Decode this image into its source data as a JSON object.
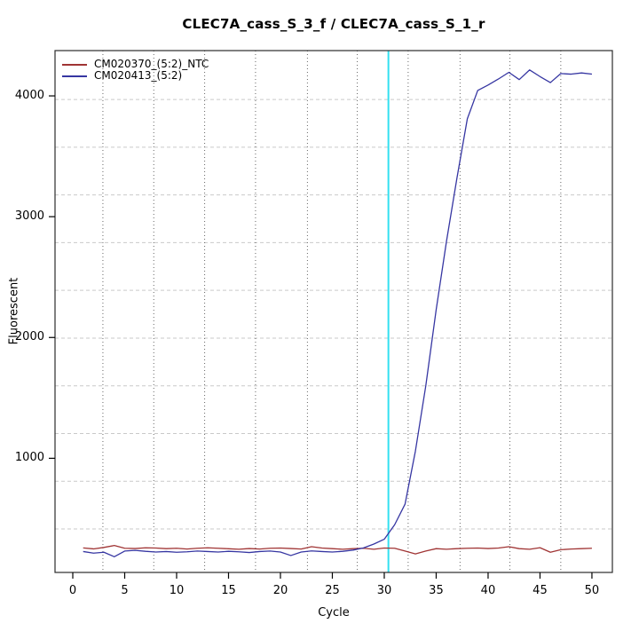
{
  "window": {
    "background": "#ffffff"
  },
  "chart_data": {
    "type": "line",
    "title": "CLEC7A_cass_S_3_f / CLEC7A_cass_S_1_r",
    "xlabel": "Cycle",
    "ylabel": "Fluorescent",
    "x_ticks": [
      0,
      5,
      10,
      15,
      20,
      25,
      30,
      35,
      40,
      45,
      50
    ],
    "y_ticks": [
      1000,
      2000,
      3000,
      4000
    ],
    "xlim": [
      -1.71,
      51.97
    ],
    "ylim": [
      55,
      4375
    ],
    "grid": "on",
    "x_gridlines": [
      2.9,
      7.8,
      12.7,
      17.6,
      22.6,
      27.4,
      32.3,
      37.3,
      42.1,
      47.0
    ],
    "y_gridlines": [
      415,
      810,
      1205,
      1600,
      1995,
      2390,
      2785,
      3180,
      3575,
      3970
    ],
    "threshold_line_cycle": 30.4,
    "legend_position": "top-left",
    "x": [
      1,
      2,
      3,
      4,
      5,
      6,
      7,
      8,
      9,
      10,
      11,
      12,
      13,
      14,
      15,
      16,
      17,
      18,
      19,
      20,
      21,
      22,
      23,
      24,
      25,
      26,
      27,
      28,
      29,
      30,
      31,
      32,
      33,
      34,
      35,
      36,
      37,
      38,
      39,
      40,
      41,
      42,
      43,
      44,
      45,
      46,
      47,
      48,
      49,
      50
    ],
    "series": [
      {
        "name": "CM020370_(5:2)_NTC",
        "color": "#A03434",
        "values": [
          258,
          250,
          262,
          278,
          255,
          253,
          259,
          257,
          252,
          255,
          249,
          255,
          259,
          255,
          251,
          247,
          253,
          249,
          255,
          257,
          253,
          249,
          268,
          257,
          252,
          247,
          252,
          255,
          247,
          257,
          255,
          232,
          208,
          232,
          252,
          247,
          252,
          255,
          257,
          253,
          257,
          268,
          252,
          247,
          260,
          222,
          243,
          249,
          252,
          255
        ]
      },
      {
        "name": "CM020413_(5:2)",
        "color": "#3636A2",
        "values": [
          228,
          215,
          222,
          185,
          232,
          238,
          230,
          224,
          228,
          222,
          226,
          232,
          228,
          224,
          230,
          226,
          220,
          228,
          232,
          224,
          195,
          224,
          233,
          228,
          224,
          230,
          240,
          258,
          290,
          330,
          450,
          620,
          1060,
          1600,
          2230,
          2800,
          3320,
          3810,
          4045,
          4090,
          4140,
          4195,
          4135,
          4215,
          4160,
          4110,
          4185,
          4180,
          4190,
          4180
        ]
      }
    ]
  },
  "colors": {
    "threshold_line": "#33E0F0",
    "grid_vertical": "#666666",
    "grid_horizontal": "#C9C9C9",
    "frame": "#2B2B2B",
    "tick": "#000000"
  },
  "legend": {
    "items": [
      {
        "label": "CM020370_(5:2)_NTC",
        "color": "#A03434"
      },
      {
        "label": "CM020413_(5:2)",
        "color": "#3636A2"
      }
    ]
  }
}
